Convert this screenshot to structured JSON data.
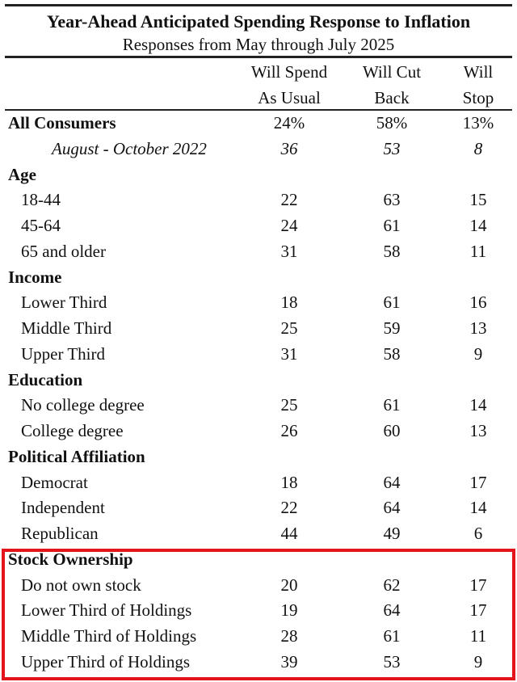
{
  "title": "Year-Ahead Anticipated Spending Response to Inflation",
  "subtitle": "Responses from May through July 2025",
  "columns": [
    {
      "line1": "Will Spend",
      "line2": "As Usual"
    },
    {
      "line1": "Will Cut",
      "line2": "Back"
    },
    {
      "line1": "Will",
      "line2": "Stop"
    }
  ],
  "highlight_color": "#e3141c",
  "chart_data": {
    "type": "table",
    "title": "Year-Ahead Anticipated Spending Response to Inflation",
    "subtitle": "Responses from May through July 2025",
    "headers": [
      "Will Spend As Usual",
      "Will Cut Back",
      "Will Stop"
    ],
    "rows": [
      {
        "label": "All Consumers",
        "kind": "total",
        "values": [
          "24%",
          "58%",
          "13%"
        ]
      },
      {
        "label": "August - October 2022",
        "kind": "italic",
        "values": [
          "36",
          "53",
          "8"
        ]
      },
      {
        "label": "Age",
        "kind": "group",
        "values": [
          "",
          "",
          ""
        ]
      },
      {
        "label": "18-44",
        "kind": "sub",
        "values": [
          "22",
          "63",
          "15"
        ]
      },
      {
        "label": "45-64",
        "kind": "sub",
        "values": [
          "24",
          "61",
          "14"
        ]
      },
      {
        "label": "65 and older",
        "kind": "sub",
        "values": [
          "31",
          "58",
          "11"
        ]
      },
      {
        "label": "Income",
        "kind": "group",
        "values": [
          "",
          "",
          ""
        ]
      },
      {
        "label": "Lower Third",
        "kind": "sub",
        "values": [
          "18",
          "61",
          "16"
        ]
      },
      {
        "label": "Middle Third",
        "kind": "sub",
        "values": [
          "25",
          "59",
          "13"
        ]
      },
      {
        "label": "Upper Third",
        "kind": "sub",
        "values": [
          "31",
          "58",
          "9"
        ]
      },
      {
        "label": "Education",
        "kind": "group",
        "values": [
          "",
          "",
          ""
        ]
      },
      {
        "label": "No college degree",
        "kind": "sub",
        "values": [
          "25",
          "61",
          "14"
        ]
      },
      {
        "label": "College degree",
        "kind": "sub",
        "values": [
          "26",
          "60",
          "13"
        ]
      },
      {
        "label": "Political Affiliation",
        "kind": "group",
        "values": [
          "",
          "",
          ""
        ]
      },
      {
        "label": "Democrat",
        "kind": "sub",
        "values": [
          "18",
          "64",
          "17"
        ]
      },
      {
        "label": "Independent",
        "kind": "sub",
        "values": [
          "22",
          "64",
          "14"
        ]
      },
      {
        "label": "Republican",
        "kind": "sub",
        "values": [
          "44",
          "49",
          "6"
        ]
      },
      {
        "label": "Stock Ownership",
        "kind": "group",
        "values": [
          "",
          "",
          ""
        ]
      },
      {
        "label": "Do not own stock",
        "kind": "sub",
        "values": [
          "20",
          "62",
          "17"
        ]
      },
      {
        "label": "Lower Third of Holdings",
        "kind": "sub",
        "values": [
          "19",
          "64",
          "17"
        ]
      },
      {
        "label": "Middle Third of Holdings",
        "kind": "sub",
        "values": [
          "28",
          "61",
          "11"
        ]
      },
      {
        "label": "Upper Third of Holdings",
        "kind": "sub",
        "values": [
          "39",
          "53",
          "9"
        ]
      }
    ],
    "highlighted_group": "Stock Ownership"
  }
}
